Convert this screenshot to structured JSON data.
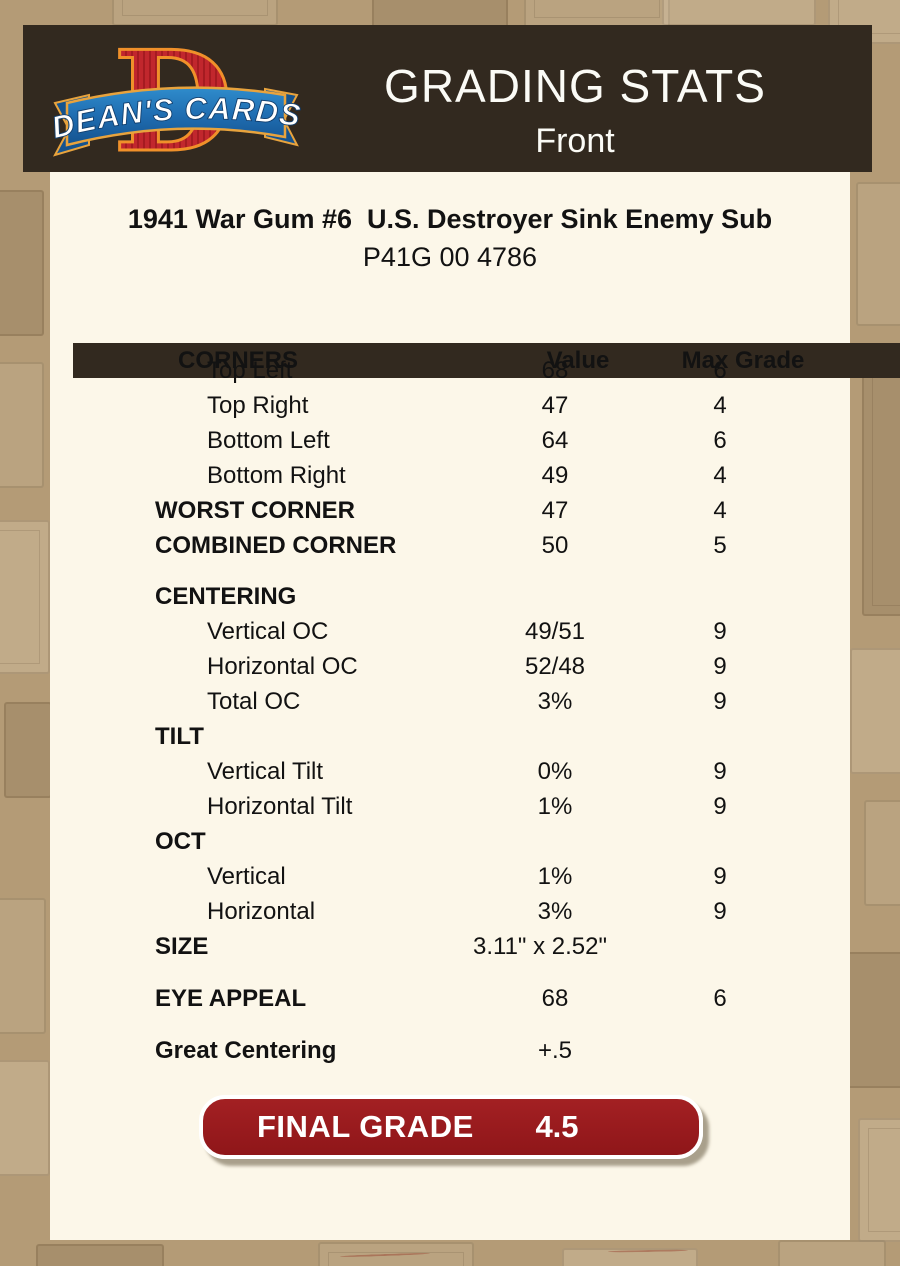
{
  "logo": {
    "monogram": "D",
    "banner_text": "DEAN'S CARDS"
  },
  "header": {
    "title": "GRADING STATS",
    "subtitle": "Front"
  },
  "card": {
    "name": "1941 War Gum #6  U.S. Destroyer Sink Enemy Sub",
    "serial": "P41G 00 4786"
  },
  "stats": {
    "rows": [
      {
        "type": "header",
        "label": "CORNERS",
        "value": "Value",
        "max": "Max Grade"
      },
      {
        "type": "item",
        "label": "Top Left",
        "value": "68",
        "max": "6"
      },
      {
        "type": "item",
        "label": "Top Right",
        "value": "47",
        "max": "4"
      },
      {
        "type": "item",
        "label": "Bottom Left",
        "value": "64",
        "max": "6"
      },
      {
        "type": "item",
        "label": "Bottom Right",
        "value": "49",
        "max": "4"
      },
      {
        "type": "section",
        "label": "WORST CORNER",
        "value": "47",
        "max": "4"
      },
      {
        "type": "section",
        "label": "COMBINED CORNER",
        "value": "50",
        "max": "5"
      },
      {
        "type": "gap",
        "h": 16
      },
      {
        "type": "section",
        "label": "CENTERING",
        "value": "",
        "max": ""
      },
      {
        "type": "item",
        "label": "Vertical OC",
        "value": "49/51",
        "max": "9"
      },
      {
        "type": "item",
        "label": "Horizontal OC",
        "value": "52/48",
        "max": "9"
      },
      {
        "type": "item",
        "label": "Total OC",
        "value": "3%",
        "max": "9"
      },
      {
        "type": "section",
        "label": "TILT",
        "value": "",
        "max": ""
      },
      {
        "type": "item",
        "label": "Vertical Tilt",
        "value": "0%",
        "max": "9"
      },
      {
        "type": "item",
        "label": "Horizontal Tilt",
        "value": "1%",
        "max": "9"
      },
      {
        "type": "section",
        "label": "OCT",
        "value": "",
        "max": ""
      },
      {
        "type": "item",
        "label": "Vertical",
        "value": "1%",
        "max": "9"
      },
      {
        "type": "item",
        "label": "Horizontal",
        "value": "3%",
        "max": "9"
      },
      {
        "type": "section",
        "label": "SIZE",
        "value": "3.11\" x 2.52\"",
        "max": "",
        "wide": true
      },
      {
        "type": "gap",
        "h": 17
      },
      {
        "type": "section",
        "label": "EYE APPEAL",
        "value": "68",
        "max": "6"
      },
      {
        "type": "gap",
        "h": 17
      },
      {
        "type": "section",
        "label": "Great Centering",
        "value": "+.5",
        "max": ""
      }
    ]
  },
  "final_grade": {
    "label": "FINAL GRADE",
    "value": "4.5"
  },
  "colors": {
    "page_bg": "#b49b76",
    "header_bg": "#32291f",
    "panel_bg": "#fcf7e9",
    "accent_red": "#9c1b1d",
    "logo_red": "#c1272d",
    "logo_orange": "#f0902a",
    "ribbon_blue": "#1f6cb0"
  }
}
